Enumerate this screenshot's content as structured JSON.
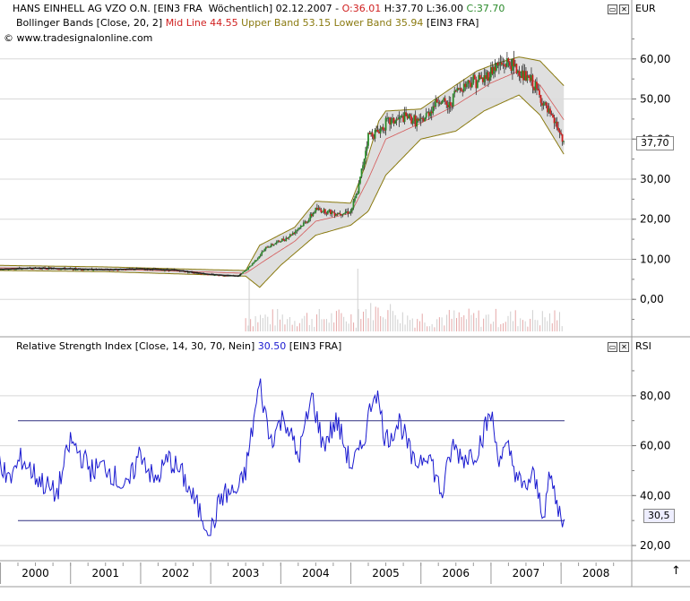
{
  "header": {
    "symbol_line": "HANS EINHELL AG VZO O.N. [EIN3 FRA  Wöchentlich] 02.12.2007 - ",
    "open": "O:36.01",
    "high": "H:37.70",
    "low": "L:36.00",
    "close": "C:37.70",
    "bb_prefix": "Bollinger Bands [Close, 20, 2] ",
    "bb_mid": "Mid Line 44.55",
    "bb_upper": "Upper Band 53.15",
    "bb_lower": "Lower Band 35.94",
    "bb_suffix": "[EIN3 FRA]",
    "source": "www.tradesignalonline.com",
    "currency": "EUR"
  },
  "rsi_header": {
    "prefix": "Relative Strength Index [Close, 14, 30, 70, Nein] ",
    "value": "30.50",
    "suffix": " [EIN3 FRA]",
    "label": "RSI"
  },
  "colors": {
    "up": "#2a8a2a",
    "down": "#d02020",
    "mid": "#d02020",
    "bands": "#8a7a10",
    "rsi": "#1a1ad0",
    "levels": "#303080",
    "close_label": "#2fa02f"
  },
  "chart_data": [
    {
      "type": "line",
      "title": "HANS EINHELL AG VZO O.N.",
      "x": [
        "2000",
        "2001",
        "2002",
        "2003",
        "2004",
        "2005",
        "2006",
        "2007"
      ],
      "ylim": [
        -8,
        68
      ],
      "yticks": [
        "0,00",
        "10,00",
        "20,00",
        "30,00",
        "40,00",
        "50,00",
        "60,00"
      ],
      "last_price": "37,70",
      "series": [
        {
          "name": "Close",
          "points": [
            [
              1999.0,
              8.2
            ],
            [
              1999.5,
              7.5
            ],
            [
              2000.0,
              7.8
            ],
            [
              2000.5,
              7.6
            ],
            [
              2001.0,
              7.4
            ],
            [
              2001.5,
              7.6
            ],
            [
              2002.0,
              7.3
            ],
            [
              2002.5,
              6.2
            ],
            [
              2002.9,
              5.8
            ],
            [
              2003.05,
              8.0
            ],
            [
              2003.3,
              13.0
            ],
            [
              2003.6,
              15.5
            ],
            [
              2003.9,
              20.0
            ],
            [
              2004.0,
              22.5
            ],
            [
              2004.3,
              21.5
            ],
            [
              2004.5,
              22.0
            ],
            [
              2004.6,
              27.0
            ],
            [
              2004.75,
              41.0
            ],
            [
              2004.9,
              42.0
            ],
            [
              2005.0,
              44.0
            ],
            [
              2005.3,
              45.5
            ],
            [
              2005.5,
              44.0
            ],
            [
              2005.75,
              50.0
            ],
            [
              2005.9,
              48.0
            ],
            [
              2006.0,
              52.0
            ],
            [
              2006.2,
              54.5
            ],
            [
              2006.4,
              55.0
            ],
            [
              2006.55,
              58.0
            ],
            [
              2006.75,
              59.0
            ],
            [
              2006.95,
              56.0
            ],
            [
              2007.1,
              54.0
            ],
            [
              2007.3,
              47.0
            ],
            [
              2007.45,
              43.0
            ],
            [
              2007.55,
              37.7
            ]
          ]
        },
        {
          "name": "Mid Line",
          "points": [
            [
              1999.0,
              8.0
            ],
            [
              2001.0,
              7.5
            ],
            [
              2002.5,
              6.8
            ],
            [
              2003.0,
              6.5
            ],
            [
              2003.3,
              10.0
            ],
            [
              2003.7,
              14.5
            ],
            [
              2004.0,
              19.5
            ],
            [
              2004.5,
              21.5
            ],
            [
              2004.75,
              30.0
            ],
            [
              2005.0,
              40.0
            ],
            [
              2005.5,
              44.0
            ],
            [
              2006.0,
              48.5
            ],
            [
              2006.5,
              54.0
            ],
            [
              2006.9,
              57.0
            ],
            [
              2007.2,
              53.5
            ],
            [
              2007.55,
              44.55
            ]
          ]
        },
        {
          "name": "Upper Band",
          "points": [
            [
              1999.0,
              8.6
            ],
            [
              2001.0,
              8.1
            ],
            [
              2002.5,
              7.4
            ],
            [
              2003.0,
              7.2
            ],
            [
              2003.2,
              13.5
            ],
            [
              2003.7,
              18.0
            ],
            [
              2004.0,
              24.5
            ],
            [
              2004.5,
              24.0
            ],
            [
              2004.7,
              33.0
            ],
            [
              2004.9,
              44.5
            ],
            [
              2005.0,
              47.0
            ],
            [
              2005.5,
              47.5
            ],
            [
              2006.0,
              53.5
            ],
            [
              2006.3,
              57.0
            ],
            [
              2006.6,
              59.0
            ],
            [
              2006.9,
              60.5
            ],
            [
              2007.2,
              59.5
            ],
            [
              2007.55,
              53.15
            ]
          ]
        },
        {
          "name": "Lower Band",
          "points": [
            [
              1999.0,
              7.3
            ],
            [
              2001.0,
              6.9
            ],
            [
              2002.5,
              6.1
            ],
            [
              2003.0,
              5.8
            ],
            [
              2003.2,
              3.0
            ],
            [
              2003.5,
              8.5
            ],
            [
              2004.0,
              16.0
            ],
            [
              2004.5,
              18.5
            ],
            [
              2004.75,
              22.0
            ],
            [
              2005.0,
              31.0
            ],
            [
              2005.5,
              40.0
            ],
            [
              2006.0,
              42.0
            ],
            [
              2006.4,
              47.0
            ],
            [
              2006.9,
              51.0
            ],
            [
              2007.2,
              46.0
            ],
            [
              2007.55,
              35.94
            ]
          ]
        }
      ]
    },
    {
      "type": "line",
      "title": "Relative Strength Index",
      "x": [
        "2000",
        "2001",
        "2002",
        "2003",
        "2004",
        "2005",
        "2006",
        "2007",
        "2008"
      ],
      "ylim": [
        15,
        95
      ],
      "yticks": [
        "20,00",
        "40,00",
        "60,00",
        "80,00"
      ],
      "levels": [
        30,
        70
      ],
      "last_value": "30,5",
      "series": [
        {
          "name": "RSI",
          "points": [
            [
              1999.0,
              40
            ],
            [
              1999.2,
              36
            ],
            [
              1999.4,
              65
            ],
            [
              1999.6,
              45
            ],
            [
              1999.8,
              55
            ],
            [
              2000.0,
              48
            ],
            [
              2000.3,
              40
            ],
            [
              2000.5,
              62
            ],
            [
              2000.8,
              50
            ],
            [
              2001.0,
              52
            ],
            [
              2001.3,
              42
            ],
            [
              2001.5,
              58
            ],
            [
              2001.7,
              45
            ],
            [
              2001.9,
              55
            ],
            [
              2002.1,
              48
            ],
            [
              2002.3,
              36
            ],
            [
              2002.5,
              25
            ],
            [
              2002.65,
              40
            ],
            [
              2002.9,
              42
            ],
            [
              2003.0,
              50
            ],
            [
              2003.2,
              85
            ],
            [
              2003.35,
              62
            ],
            [
              2003.55,
              72
            ],
            [
              2003.75,
              55
            ],
            [
              2003.95,
              80
            ],
            [
              2004.1,
              60
            ],
            [
              2004.3,
              70
            ],
            [
              2004.5,
              52
            ],
            [
              2004.65,
              58
            ],
            [
              2004.85,
              84
            ],
            [
              2005.0,
              62
            ],
            [
              2005.2,
              70
            ],
            [
              2005.4,
              52
            ],
            [
              2005.6,
              58
            ],
            [
              2005.8,
              40
            ],
            [
              2005.95,
              60
            ],
            [
              2006.1,
              55
            ],
            [
              2006.3,
              58
            ],
            [
              2006.5,
              73
            ],
            [
              2006.6,
              56
            ],
            [
              2006.75,
              58
            ],
            [
              2006.95,
              42
            ],
            [
              2007.1,
              48
            ],
            [
              2007.25,
              33
            ],
            [
              2007.35,
              48
            ],
            [
              2007.45,
              35
            ],
            [
              2007.55,
              30.5
            ]
          ]
        }
      ]
    }
  ]
}
